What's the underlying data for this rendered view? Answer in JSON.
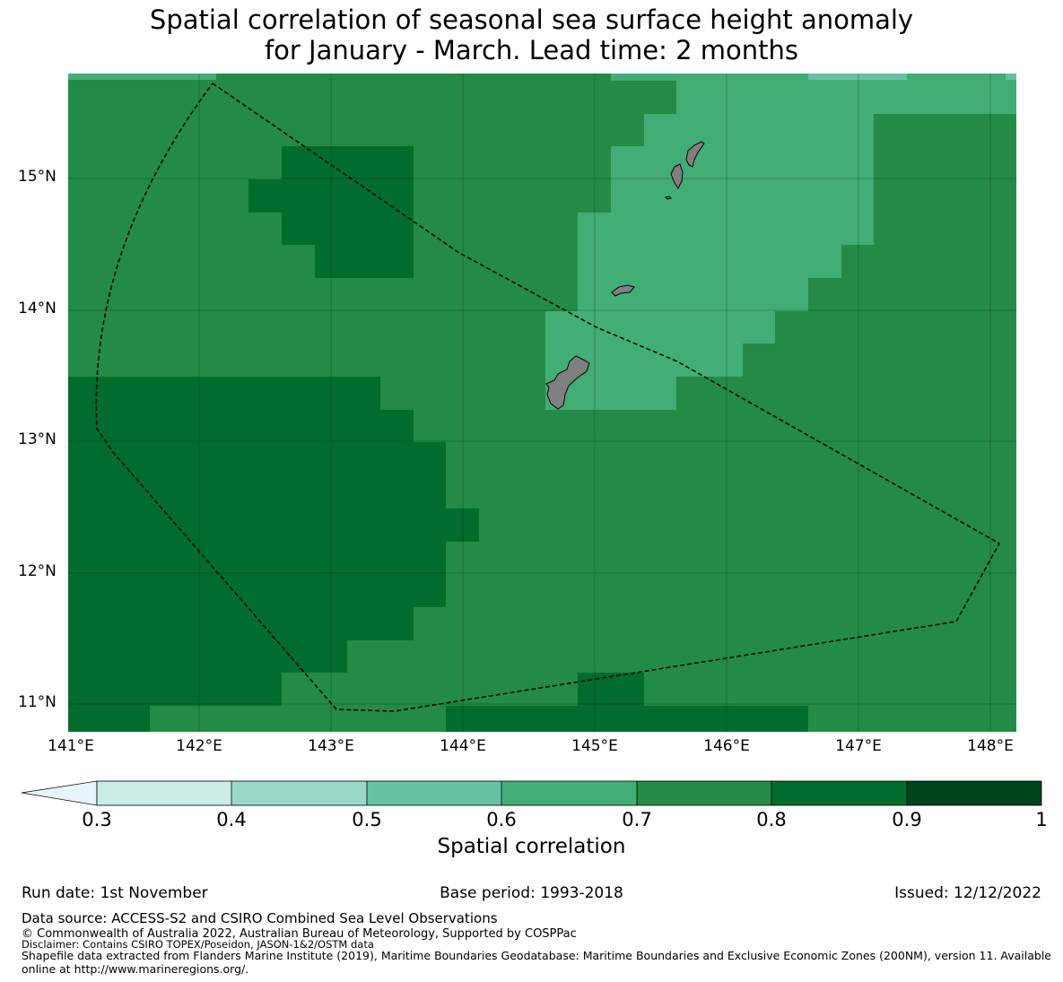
{
  "title": {
    "line1": "Spatial correlation of seasonal sea surface height anomaly",
    "line2": "for January - March. Lead time: 2 months"
  },
  "map": {
    "lon_range": [
      141.0,
      148.2
    ],
    "lat_range": [
      10.8,
      15.8
    ],
    "x_ticks": [
      "141°E",
      "142°E",
      "143°E",
      "144°E",
      "145°E",
      "146°E",
      "147°E",
      "148°E"
    ],
    "y_ticks": [
      "15°N",
      "14°N",
      "13°N",
      "12°N",
      "11°N"
    ],
    "land_color": "#808080",
    "boundary_style": "dashed black line (EEZ)",
    "gridlines": true
  },
  "colorbar": {
    "label": "Spatial correlation",
    "ticks": [
      "0.3",
      "0.4",
      "0.5",
      "0.6",
      "0.7",
      "0.8",
      "0.9",
      "1"
    ],
    "bins": [
      {
        "min": 0.3,
        "max": 0.4,
        "color": "#ccece6"
      },
      {
        "min": 0.4,
        "max": 0.5,
        "color": "#99d8c9"
      },
      {
        "min": 0.5,
        "max": 0.6,
        "color": "#66c2a4"
      },
      {
        "min": 0.6,
        "max": 0.7,
        "color": "#41ae76"
      },
      {
        "min": 0.7,
        "max": 0.8,
        "color": "#238b45"
      },
      {
        "min": 0.8,
        "max": 0.9,
        "color": "#006d2c"
      },
      {
        "min": 0.9,
        "max": 1.0,
        "color": "#00441b"
      }
    ],
    "under_color": "#e5f5f9",
    "extend": "min"
  },
  "footer": {
    "run_date": "Run date: 1st November",
    "base_period": "Base period: 1993-2018",
    "issued": "Issued: 12/12/2022",
    "data_source": "Data source: ACCESS-S2 and CSIRO Combined Sea Level Observations",
    "copyright": "© Commonwealth of Australia 2022, Australian Bureau of Meteorology, Supported by COSPPac",
    "disclaimer": "Disclaimer: Contains CSIRO TOPEX/Poseidon, JASON-1&2/OSTM data",
    "shapefile": "Shapefile data extracted from Flanders Marine Institute (2019), Maritime Boundaries Geodatabase: Maritime Boundaries and Exclusive Economic Zones (200NM), version 11. Available online at http://www.marineregions.org/."
  }
}
